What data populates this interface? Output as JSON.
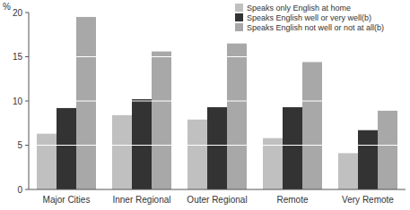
{
  "chart_data": {
    "type": "bar",
    "y_label": "%",
    "categories": [
      "Major Cities",
      "Inner Regional",
      "Outer Regional",
      "Remote",
      "Very Remote"
    ],
    "series": [
      {
        "name": "Speaks only English at home",
        "color": "#c0c0c0",
        "values": [
          6.3,
          8.4,
          7.9,
          5.8,
          4.1
        ]
      },
      {
        "name": "Speaks English well or very well(b)",
        "color": "#333333",
        "values": [
          9.2,
          10.2,
          9.3,
          9.3,
          6.7
        ]
      },
      {
        "name": "Speaks English not well or not at all(b)",
        "color": "#a8a8a8",
        "values": [
          19.5,
          15.6,
          16.5,
          14.4,
          8.9
        ]
      }
    ],
    "ylim": [
      0,
      20
    ],
    "yticks": [
      0,
      5,
      10,
      15,
      20
    ],
    "grid": true,
    "legend": "upper right"
  }
}
